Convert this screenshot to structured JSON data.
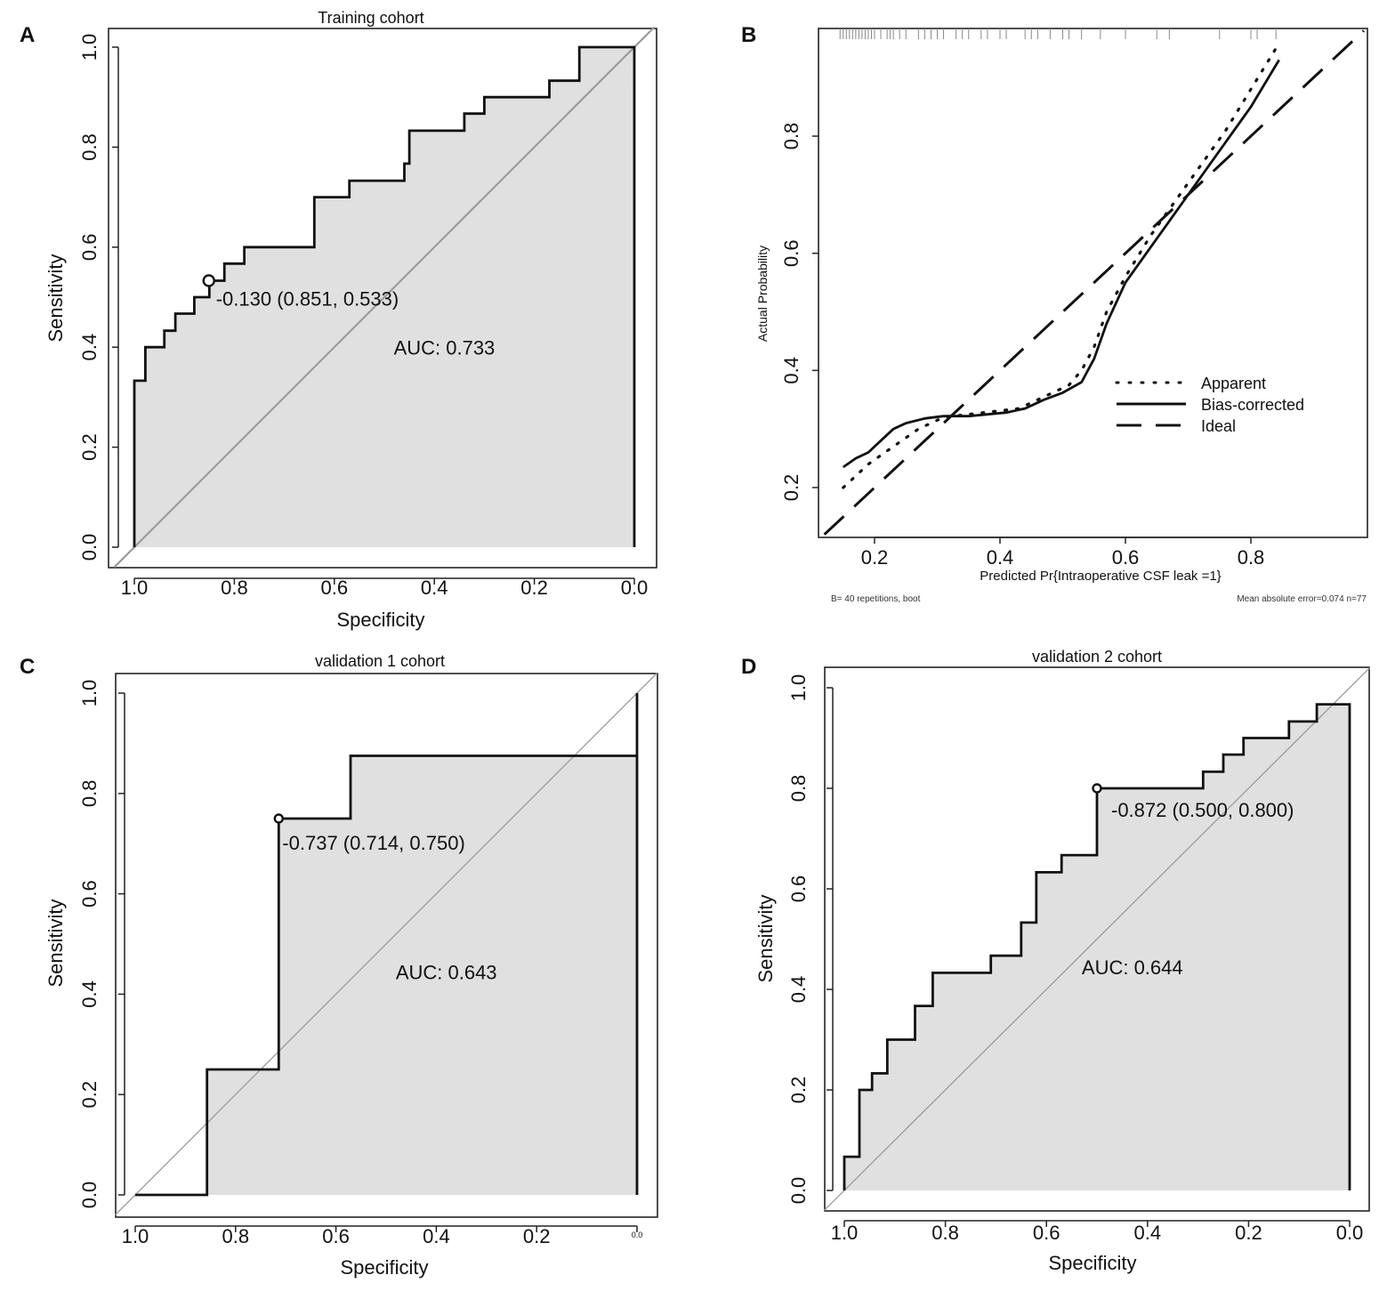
{
  "chart_data": [
    {
      "panel": "A",
      "type": "line",
      "title": "Training cohort",
      "xlabel": "Specificity",
      "ylabel": "Sensitivity",
      "xlim": [
        1.0,
        0.0
      ],
      "ylim": [
        0.0,
        1.0
      ],
      "x_ticks": [
        "1.0",
        "0.8",
        "0.6",
        "0.4",
        "0.2",
        "0.0"
      ],
      "y_ticks": [
        "0.0",
        "0.2",
        "0.4",
        "0.6",
        "0.8",
        "1.0"
      ],
      "roc_curve": {
        "specificity": [
          1.0,
          1.0,
          0.978,
          0.978,
          0.94,
          0.94,
          0.918,
          0.918,
          0.88,
          0.88,
          0.85,
          0.85,
          0.82,
          0.82,
          0.78,
          0.78,
          0.64,
          0.64,
          0.57,
          0.57,
          0.46,
          0.46,
          0.45,
          0.45,
          0.34,
          0.34,
          0.3,
          0.3,
          0.17,
          0.17,
          0.11,
          0.11,
          0.0,
          0.0
        ],
        "sensitivity": [
          0.0,
          0.333,
          0.333,
          0.4,
          0.4,
          0.433,
          0.433,
          0.467,
          0.467,
          0.5,
          0.5,
          0.533,
          0.533,
          0.567,
          0.567,
          0.6,
          0.6,
          0.7,
          0.7,
          0.733,
          0.733,
          0.767,
          0.767,
          0.833,
          0.833,
          0.867,
          0.867,
          0.9,
          0.9,
          0.933,
          0.933,
          1.0,
          1.0,
          0.0
        ]
      },
      "threshold_point": {
        "specificity": 0.851,
        "sensitivity": 0.533
      },
      "threshold_label": "-0.130 (0.851, 0.533)",
      "auc_label": "AUC: 0.733",
      "auc_pos": {
        "specificity": 0.38,
        "sensitivity": 0.385
      }
    },
    {
      "panel": "B",
      "type": "line",
      "title": "",
      "xlabel": "Predicted Pr{Intraoperative CSF leak =1}",
      "ylabel": "Actual Probability",
      "xlim": [
        0.12,
        0.98
      ],
      "ylim": [
        0.11,
        0.99
      ],
      "x_ticks": [
        "0.2",
        "0.4",
        "0.6",
        "0.8"
      ],
      "y_ticks": [
        "0.2",
        "0.4",
        "0.6",
        "0.8"
      ],
      "series": [
        {
          "name": "Apparent",
          "style": "dotted",
          "x": [
            0.15,
            0.19,
            0.23,
            0.27,
            0.31,
            0.35,
            0.39,
            0.43,
            0.47,
            0.51,
            0.53,
            0.55,
            0.57,
            0.6,
            0.64,
            0.68,
            0.72,
            0.76,
            0.8,
            0.84
          ],
          "y": [
            0.2,
            0.24,
            0.27,
            0.3,
            0.32,
            0.325,
            0.33,
            0.335,
            0.355,
            0.375,
            0.4,
            0.44,
            0.5,
            0.56,
            0.63,
            0.69,
            0.75,
            0.81,
            0.88,
            0.95
          ]
        },
        {
          "name": "Bias-corrected",
          "style": "solid",
          "x": [
            0.15,
            0.17,
            0.19,
            0.21,
            0.23,
            0.25,
            0.28,
            0.31,
            0.35,
            0.38,
            0.41,
            0.44,
            0.47,
            0.5,
            0.53,
            0.55,
            0.57,
            0.6,
            0.64,
            0.68,
            0.72,
            0.76,
            0.8,
            0.845
          ],
          "y": [
            0.235,
            0.25,
            0.26,
            0.28,
            0.3,
            0.31,
            0.318,
            0.322,
            0.322,
            0.325,
            0.328,
            0.335,
            0.35,
            0.362,
            0.38,
            0.42,
            0.48,
            0.55,
            0.61,
            0.67,
            0.73,
            0.79,
            0.85,
            0.93
          ]
        },
        {
          "name": "Ideal",
          "style": "dashed",
          "x": [
            0.12,
            0.98
          ],
          "y": [
            0.12,
            0.98
          ]
        }
      ],
      "rug_x": [
        0.145,
        0.15,
        0.155,
        0.16,
        0.165,
        0.17,
        0.175,
        0.18,
        0.185,
        0.19,
        0.195,
        0.2,
        0.21,
        0.22,
        0.225,
        0.23,
        0.24,
        0.25,
        0.27,
        0.28,
        0.29,
        0.3,
        0.31,
        0.33,
        0.34,
        0.35,
        0.37,
        0.38,
        0.4,
        0.41,
        0.44,
        0.45,
        0.46,
        0.48,
        0.5,
        0.51,
        0.53,
        0.56,
        0.6,
        0.65,
        0.67,
        0.75,
        0.8,
        0.81,
        0.84
      ],
      "legend": [
        "Apparent",
        "Bias-corrected",
        "Ideal"
      ],
      "legend_position": "bottom-right",
      "footnote_left": "B= 40 repetitions, boot",
      "footnote_right": "Mean absolute error=0.074 n=77"
    },
    {
      "panel": "C",
      "type": "line",
      "title": "validation 1 cohort",
      "xlabel": "Specificity",
      "ylabel": "Sensitivity",
      "xlim": [
        1.0,
        0.0
      ],
      "ylim": [
        0.0,
        1.0
      ],
      "x_ticks": [
        "1.0",
        "0.8",
        "0.6",
        "0.4",
        "0.2",
        "0.0"
      ],
      "y_ticks": [
        "0.0",
        "0.2",
        "0.4",
        "0.6",
        "0.8",
        "1.0"
      ],
      "roc_curve": {
        "specificity": [
          1.0,
          0.857,
          0.857,
          0.714,
          0.714,
          0.571,
          0.571,
          0.0,
          0.0,
          0.0
        ],
        "sensitivity": [
          0.0,
          0.0,
          0.25,
          0.25,
          0.75,
          0.75,
          0.875,
          0.875,
          1.0,
          0.0
        ]
      },
      "threshold_point": {
        "specificity": 0.714,
        "sensitivity": 0.75
      },
      "threshold_label": "-0.737 (0.714, 0.750)",
      "auc_label": "AUC: 0.643",
      "auc_pos": {
        "specificity": 0.38,
        "sensitivity": 0.43
      }
    },
    {
      "panel": "D",
      "type": "line",
      "title": "validation 2 cohort",
      "xlabel": "Specificity",
      "ylabel": "Sensitivity",
      "xlim": [
        1.0,
        0.0
      ],
      "ylim": [
        0.0,
        1.0
      ],
      "x_ticks": [
        "1.0",
        "0.8",
        "0.6",
        "0.4",
        "0.2",
        "0.0"
      ],
      "y_ticks": [
        "0.0",
        "0.2",
        "0.4",
        "0.6",
        "0.8",
        "1.0"
      ],
      "roc_curve": {
        "specificity": [
          1.0,
          1.0,
          0.97,
          0.97,
          0.945,
          0.945,
          0.915,
          0.915,
          0.86,
          0.86,
          0.825,
          0.825,
          0.71,
          0.71,
          0.65,
          0.65,
          0.62,
          0.62,
          0.57,
          0.57,
          0.5,
          0.5,
          0.29,
          0.29,
          0.25,
          0.25,
          0.21,
          0.21,
          0.12,
          0.12,
          0.065,
          0.065,
          0.0,
          0.0
        ],
        "sensitivity": [
          0.0,
          0.067,
          0.067,
          0.2,
          0.2,
          0.233,
          0.233,
          0.3,
          0.3,
          0.367,
          0.367,
          0.433,
          0.433,
          0.467,
          0.467,
          0.533,
          0.533,
          0.633,
          0.633,
          0.667,
          0.667,
          0.8,
          0.8,
          0.833,
          0.833,
          0.867,
          0.867,
          0.9,
          0.9,
          0.933,
          0.933,
          0.967,
          0.967,
          0.0
        ]
      },
      "threshold_point": {
        "specificity": 0.5,
        "sensitivity": 0.8
      },
      "threshold_label": "-0.872 (0.500, 0.800)",
      "auc_label": "AUC: 0.644",
      "auc_pos": {
        "specificity": 0.43,
        "sensitivity": 0.43
      }
    }
  ]
}
